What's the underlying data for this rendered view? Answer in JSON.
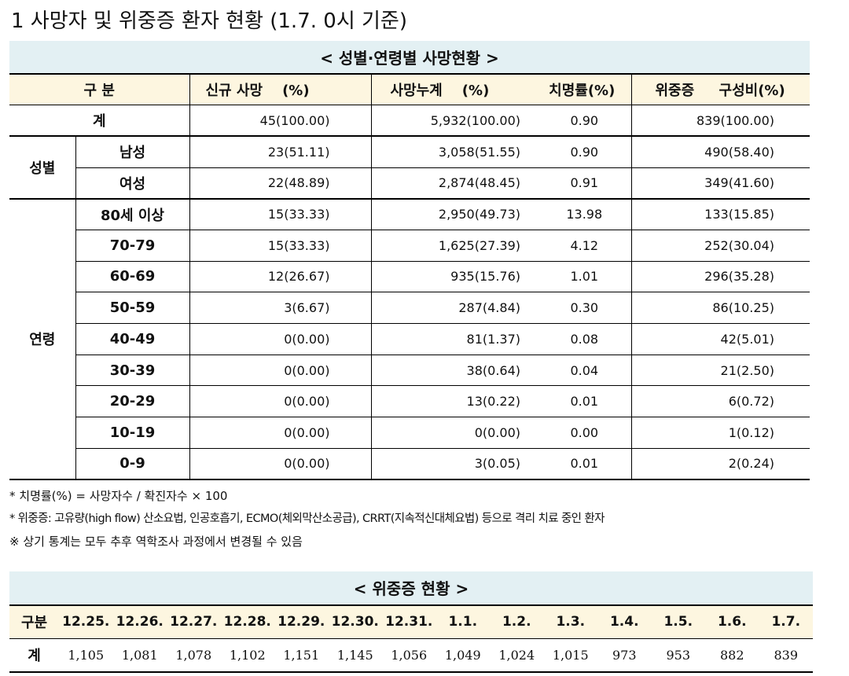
{
  "title": "1 사망자 및 위중증 환자 현황 (1.7. 0시 기준)",
  "table1": {
    "caption": "< 성별·연령별 사망현황 >",
    "headers": [
      "구 분",
      "신규 사망    (%)",
      "사망누계    (%)",
      "치명률(%)",
      "위중증     구성비(%)"
    ],
    "total": {
      "label": "계",
      "cells": [
        "45(100.00)",
        "5,932(100.00)",
        "0.90",
        "839(100.00)"
      ]
    },
    "groups": [
      {
        "name": "성별",
        "rows": [
          {
            "label": "남성",
            "cells": [
              "23(51.11)",
              "3,058(51.55)",
              "0.90",
              "490(58.40)"
            ]
          },
          {
            "label": "여성",
            "cells": [
              "22(48.89)",
              "2,874(48.45)",
              "0.91",
              "349(41.60)"
            ]
          }
        ]
      },
      {
        "name": "연령",
        "rows": [
          {
            "label": "80세 이상",
            "cells": [
              "15(33.33)",
              "2,950(49.73)",
              "13.98",
              "133(15.85)"
            ]
          },
          {
            "label": "70-79",
            "cells": [
              "15(33.33)",
              "1,625(27.39)",
              "4.12",
              "252(30.04)"
            ]
          },
          {
            "label": "60-69",
            "cells": [
              "12(26.67)",
              "935(15.76)",
              "1.01",
              "296(35.28)"
            ]
          },
          {
            "label": "50-59",
            "cells": [
              "3(6.67)",
              "287(4.84)",
              "0.30",
              "86(10.25)"
            ]
          },
          {
            "label": "40-49",
            "cells": [
              "0(0.00)",
              "81(1.37)",
              "0.08",
              "42(5.01)"
            ]
          },
          {
            "label": "30-39",
            "cells": [
              "0(0.00)",
              "38(0.64)",
              "0.04",
              "21(2.50)"
            ]
          },
          {
            "label": "20-29",
            "cells": [
              "0(0.00)",
              "13(0.22)",
              "0.01",
              "6(0.72)"
            ]
          },
          {
            "label": "10-19",
            "cells": [
              "0(0.00)",
              "0(0.00)",
              "0.00",
              "1(0.12)"
            ]
          },
          {
            "label": "0-9",
            "cells": [
              "0(0.00)",
              "3(0.05)",
              "0.01",
              "2(0.24)"
            ]
          }
        ]
      }
    ]
  },
  "notes": [
    "* 치명률(%) = 사망자수 / 확진자수 × 100",
    "* 위중증: 고유량(high flow) 산소요법, 인공호흡기, ECMO(체외막산소공급), CRRT(지속적신대체요법) 등으로 격리 치료 중인 환자",
    "※ 상기 통계는 모두 추후 역학조사 과정에서 변경될 수 있음"
  ],
  "table2": {
    "caption": "< 위중증 현황 >",
    "header_label": "구분",
    "dates": [
      "12.25.",
      "12.26.",
      "12.27.",
      "12.28.",
      "12.29.",
      "12.30.",
      "12.31.",
      "1.1.",
      "1.2.",
      "1.3.",
      "1.4.",
      "1.5.",
      "1.6.",
      "1.7."
    ],
    "row_label": "계",
    "values": [
      "1,105",
      "1,081",
      "1,078",
      "1,102",
      "1,151",
      "1,145",
      "1,056",
      "1,049",
      "1,024",
      "1,015",
      "973",
      "953",
      "882",
      "839"
    ]
  }
}
